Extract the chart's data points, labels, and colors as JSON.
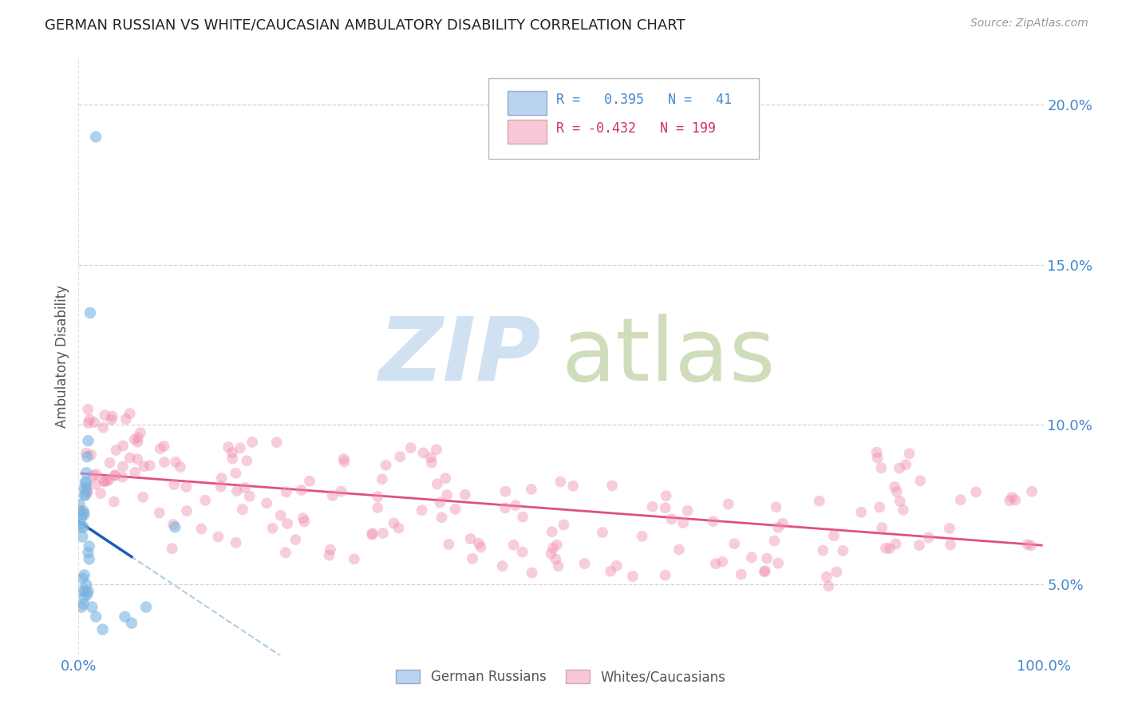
{
  "title": "GERMAN RUSSIAN VS WHITE/CAUCASIAN AMBULATORY DISABILITY CORRELATION CHART",
  "source": "Source: ZipAtlas.com",
  "ylabel": "Ambulatory Disability",
  "xlim": [
    0.0,
    1.0
  ],
  "ylim": [
    0.028,
    0.215
  ],
  "yticks": [
    0.05,
    0.1,
    0.15,
    0.2
  ],
  "ytick_labels": [
    "5.0%",
    "10.0%",
    "15.0%",
    "20.0%"
  ],
  "xtick_positions": [
    0.0,
    1.0
  ],
  "xtick_labels": [
    "0.0%",
    "100.0%"
  ],
  "background_color": "#ffffff",
  "grid_color": "#c8c8c8",
  "blue_line_color": "#1a5eb8",
  "pink_line_color": "#e05080",
  "blue_dot_color": "#7ab3e0",
  "pink_dot_color": "#f090b0",
  "blue_fill": "#b8d4f0",
  "pink_fill": "#f8c8d8",
  "ytick_color": "#4488cc",
  "xtick_color": "#4488cc",
  "legend_text_blue": "#4488cc",
  "legend_text_pink": "#cc3366",
  "watermark_zip_color": "#c8ddf0",
  "watermark_atlas_color": "#c8d8b0"
}
